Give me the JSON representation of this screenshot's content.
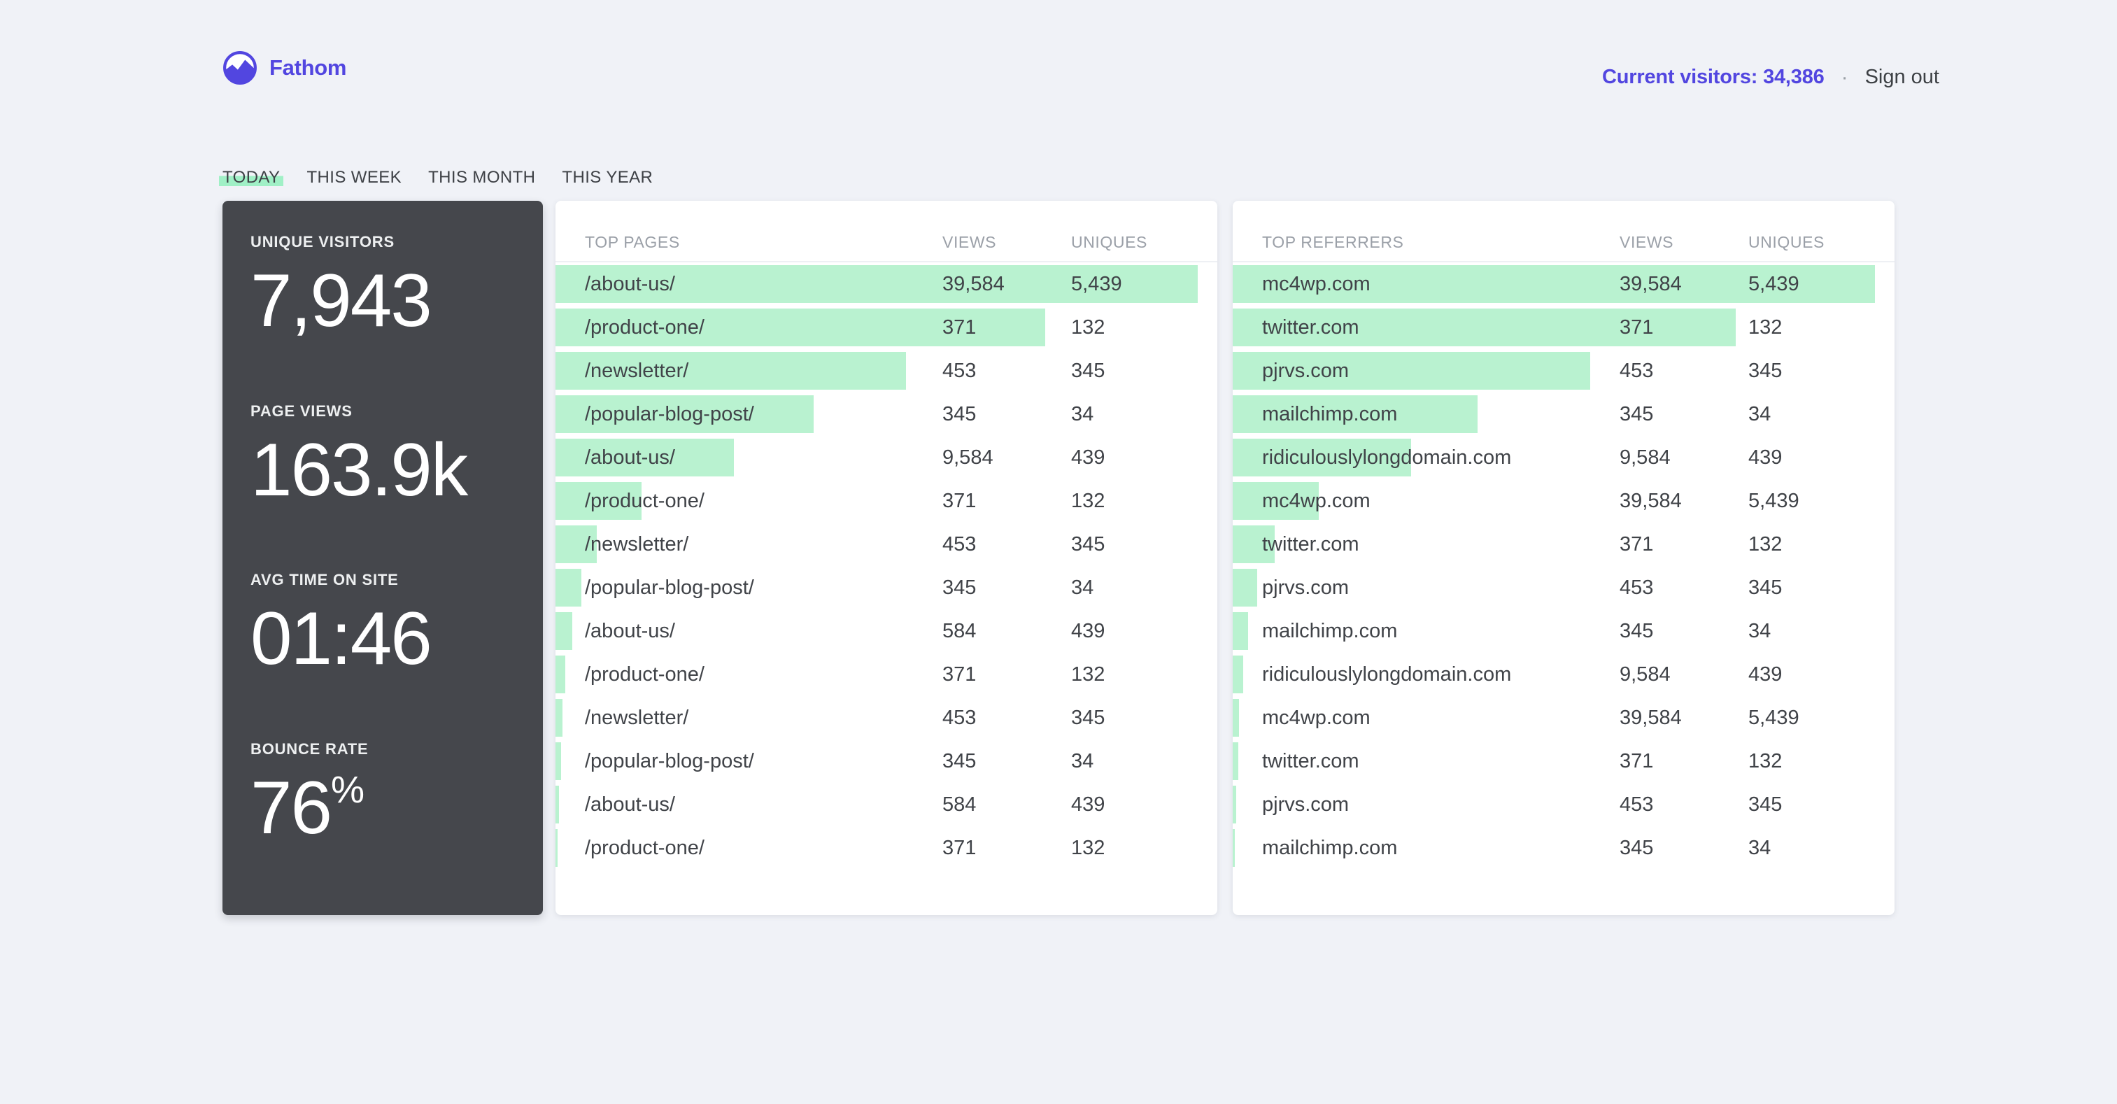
{
  "brand": {
    "name": "Fathom",
    "logo_icon": "mountain-circle-icon"
  },
  "header": {
    "current_visitors": "Current visitors: 34,386",
    "separator": "·",
    "sign_out": "Sign out"
  },
  "tabs": [
    {
      "label": "TODAY",
      "active": true
    },
    {
      "label": "THIS WEEK",
      "active": false
    },
    {
      "label": "THIS MONTH",
      "active": false
    },
    {
      "label": "THIS YEAR",
      "active": false
    }
  ],
  "stats": [
    {
      "label": "UNIQUE VISITORS",
      "value": "7,943",
      "suffix": ""
    },
    {
      "label": "PAGE VIEWS",
      "value": "163.9k",
      "suffix": ""
    },
    {
      "label": "AVG TIME ON SITE",
      "value": "01:46",
      "suffix": ""
    },
    {
      "label": "BOUNCE RATE",
      "value": "76",
      "suffix": "%"
    }
  ],
  "tables": [
    {
      "title": "TOP PAGES",
      "columns": [
        "VIEWS",
        "UNIQUES"
      ],
      "rows": [
        {
          "name": "/about-us/",
          "views": "39,584",
          "uniques": "5,439",
          "bar_pct": 97
        },
        {
          "name": "/product-one/",
          "views": "371",
          "uniques": "132",
          "bar_pct": 74
        },
        {
          "name": "/newsletter/",
          "views": "453",
          "uniques": "345",
          "bar_pct": 53
        },
        {
          "name": "/popular-blog-post/",
          "views": "345",
          "uniques": "34",
          "bar_pct": 39
        },
        {
          "name": "/about-us/",
          "views": "9,584",
          "uniques": "439",
          "bar_pct": 27
        },
        {
          "name": "/product-one/",
          "views": "371",
          "uniques": "132",
          "bar_pct": 13
        },
        {
          "name": "/newsletter/",
          "views": "453",
          "uniques": "345",
          "bar_pct": 6.2
        },
        {
          "name": "/popular-blog-post/",
          "views": "345",
          "uniques": "34",
          "bar_pct": 3.9
        },
        {
          "name": "/about-us/",
          "views": "584",
          "uniques": "439",
          "bar_pct": 2.5
        },
        {
          "name": "/product-one/",
          "views": "371",
          "uniques": "132",
          "bar_pct": 1.5
        },
        {
          "name": "/newsletter/",
          "views": "453",
          "uniques": "345",
          "bar_pct": 1.1
        },
        {
          "name": "/popular-blog-post/",
          "views": "345",
          "uniques": "34",
          "bar_pct": 0.8
        },
        {
          "name": "/about-us/",
          "views": "584",
          "uniques": "439",
          "bar_pct": 0.5
        },
        {
          "name": "/product-one/",
          "views": "371",
          "uniques": "132",
          "bar_pct": 0.3
        }
      ]
    },
    {
      "title": "TOP REFERRERS",
      "columns": [
        "VIEWS",
        "UNIQUES"
      ],
      "rows": [
        {
          "name": "mc4wp.com",
          "views": "39,584",
          "uniques": "5,439",
          "bar_pct": 97
        },
        {
          "name": "twitter.com",
          "views": "371",
          "uniques": "132",
          "bar_pct": 76
        },
        {
          "name": "pjrvs.com",
          "views": "453",
          "uniques": "345",
          "bar_pct": 54
        },
        {
          "name": "mailchimp.com",
          "views": "345",
          "uniques": "34",
          "bar_pct": 37
        },
        {
          "name": "ridiculouslylongdomain.com",
          "views": "9,584",
          "uniques": "439",
          "bar_pct": 27
        },
        {
          "name": "mc4wp.com",
          "views": "39,584",
          "uniques": "5,439",
          "bar_pct": 13
        },
        {
          "name": "twitter.com",
          "views": "371",
          "uniques": "132",
          "bar_pct": 6.3
        },
        {
          "name": "pjrvs.com",
          "views": "453",
          "uniques": "345",
          "bar_pct": 3.7
        },
        {
          "name": "mailchimp.com",
          "views": "345",
          "uniques": "34",
          "bar_pct": 2.3
        },
        {
          "name": "ridiculouslylongdomain.com",
          "views": "9,584",
          "uniques": "439",
          "bar_pct": 1.6
        },
        {
          "name": "mc4wp.com",
          "views": "39,584",
          "uniques": "5,439",
          "bar_pct": 1.0
        },
        {
          "name": "twitter.com",
          "views": "371",
          "uniques": "132",
          "bar_pct": 0.8
        },
        {
          "name": "pjrvs.com",
          "views": "453",
          "uniques": "345",
          "bar_pct": 0.5
        },
        {
          "name": "mailchimp.com",
          "views": "345",
          "uniques": "34",
          "bar_pct": 0.3
        }
      ]
    }
  ],
  "colors": {
    "accent_indigo": "#5246e0",
    "highlight_green": "#a0f0c6",
    "bar_green": "#b9f2d0",
    "dark_card": "#45474c",
    "page_background": "#f0f2f7",
    "muted_header_text": "#9ba0a8",
    "body_text": "#404348"
  }
}
